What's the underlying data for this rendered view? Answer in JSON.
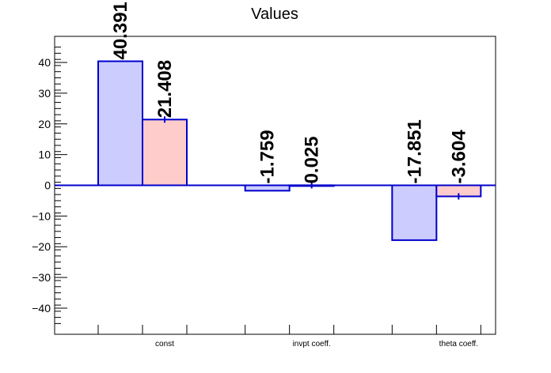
{
  "chart_data": {
    "type": "bar",
    "title": "Values",
    "xlabel": "",
    "ylabel": "",
    "ylim": [
      -48.5,
      48.5
    ],
    "yticks": [
      -40,
      -30,
      -20,
      -10,
      0,
      10,
      20,
      30,
      40
    ],
    "ytick_labels": [
      "−40",
      "−30",
      "−20",
      "−10",
      "0",
      "10",
      "20",
      "30",
      "40"
    ],
    "categories": [
      "const",
      "invpt coeff.",
      "theta coeff."
    ],
    "series": [
      {
        "values": [
          40.391,
          -1.759,
          -17.851
        ],
        "labels": [
          "40.391",
          "-1.759",
          "-17.851"
        ],
        "fill": "#ccccff",
        "stroke": "#0000cc"
      },
      {
        "values": [
          21.408,
          0.025,
          -3.604
        ],
        "labels": [
          "21.408",
          "0.025",
          "-3.604"
        ],
        "fill": "#ffcccc",
        "stroke": "#0000cc",
        "error_bars": true
      }
    ],
    "grid": false,
    "legend": "none"
  }
}
